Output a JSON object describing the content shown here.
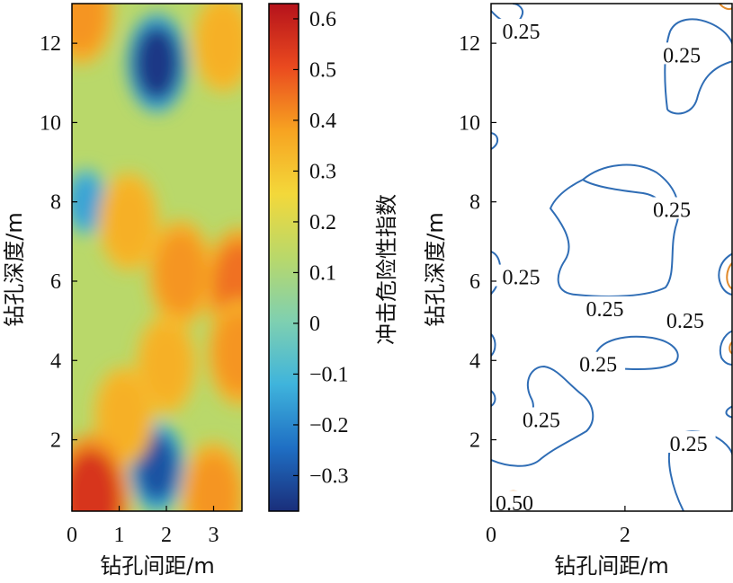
{
  "chart_data": [
    {
      "type": "heatmap",
      "xlabel": "钻孔间距/m",
      "ylabel": "钻孔深度/m",
      "xlim": [
        0,
        3.6
      ],
      "ylim": [
        0.2,
        13
      ],
      "xticks": [
        0,
        1,
        2,
        3
      ],
      "yticks": [
        2,
        4,
        6,
        8,
        10,
        12
      ],
      "colorbar": {
        "label": "冲击危险性指数",
        "range": [
          -0.37,
          0.63
        ],
        "ticks": [
          "0.6",
          "0.5",
          "0.4",
          "0.3",
          "0.2",
          "0.1",
          "0",
          "−0.1",
          "−0.2",
          "−0.3"
        ],
        "tick_values": [
          0.6,
          0.5,
          0.4,
          0.3,
          0.2,
          0.1,
          0,
          -0.1,
          -0.2,
          -0.3
        ],
        "colors": [
          "#1a2e7a",
          "#1f6fc4",
          "#3fb4dc",
          "#7fd0b0",
          "#b9d86a",
          "#f3d83a",
          "#f7a321",
          "#ea4a1f",
          "#b5121b"
        ]
      },
      "features": [
        {
          "x": 1.8,
          "y": 11.5,
          "value": -0.35
        },
        {
          "x": 1.8,
          "y": 1.3,
          "value": -0.3
        },
        {
          "x": 0.3,
          "y": 8.0,
          "value": -0.15
        },
        {
          "x": 1.2,
          "y": 7.5,
          "value": 0.35
        },
        {
          "x": 2.3,
          "y": 6.2,
          "value": 0.4
        },
        {
          "x": 3.55,
          "y": 5.9,
          "value": 0.45
        },
        {
          "x": 3.55,
          "y": 4.2,
          "value": 0.4
        },
        {
          "x": 2.0,
          "y": 3.9,
          "value": 0.35
        },
        {
          "x": 1.1,
          "y": 2.6,
          "value": 0.35
        },
        {
          "x": 3.0,
          "y": 0.6,
          "value": 0.4
        },
        {
          "x": 0.4,
          "y": 0.5,
          "value": 0.55
        },
        {
          "x": 0.2,
          "y": 12.8,
          "value": 0.4
        },
        {
          "x": 3.2,
          "y": 12.0,
          "value": 0.35
        }
      ]
    },
    {
      "type": "line",
      "subtype": "contour",
      "xlabel": "钻孔间距/m",
      "ylabel": "钻孔深度/m",
      "xlim": [
        0,
        3.6
      ],
      "ylim": [
        0.2,
        13
      ],
      "xticks": [
        0,
        2
      ],
      "yticks": [
        2,
        4,
        6,
        8,
        10,
        12
      ],
      "levels": [
        {
          "value": 0.25,
          "label": "0.25",
          "color": "#2f6db5"
        },
        {
          "value": 0.5,
          "label": "0.50",
          "color": "#e08a2c"
        }
      ],
      "contour_labels": [
        {
          "text": "0.25",
          "x": 0.45,
          "y": 12.3
        },
        {
          "text": "0.25",
          "x": 2.85,
          "y": 11.7
        },
        {
          "text": "0.25",
          "x": 2.7,
          "y": 7.8
        },
        {
          "text": "0.25",
          "x": 0.45,
          "y": 6.1
        },
        {
          "text": "0.25",
          "x": 1.7,
          "y": 5.3
        },
        {
          "text": "0.25",
          "x": 2.9,
          "y": 5.0
        },
        {
          "text": "0.25",
          "x": 1.6,
          "y": 3.9
        },
        {
          "text": "0.25",
          "x": 0.75,
          "y": 2.5
        },
        {
          "text": "0.25",
          "x": 2.95,
          "y": 1.9
        },
        {
          "text": "0.50",
          "x": 0.35,
          "y": 0.4
        }
      ]
    }
  ]
}
